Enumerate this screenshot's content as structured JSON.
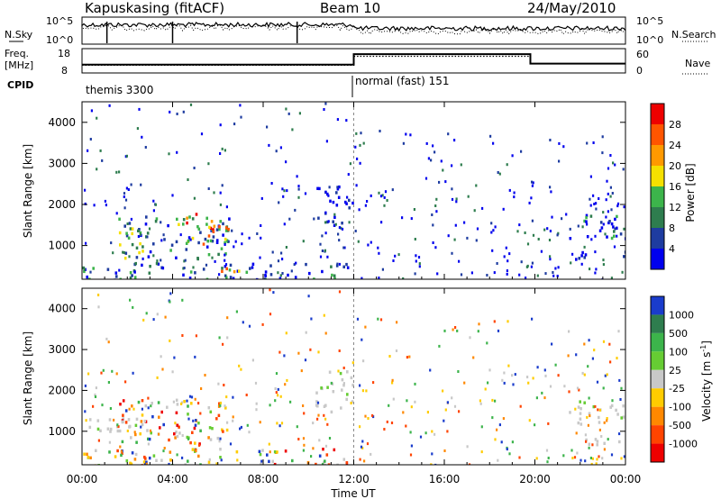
{
  "header": {
    "station": "Kapuskasing (fitACF)",
    "beam": "Beam 10",
    "date": "24/May/2010"
  },
  "status_panel": {
    "nsky_label": "N.Sky",
    "nsky_ticks": [
      "10^5",
      "10^0"
    ],
    "nsearch_label": "N.Search",
    "nsearch_ticks": [
      "10^5",
      "10^0"
    ],
    "freq_label_1": "Freq.",
    "freq_label_2": "[MHz]",
    "freq_ticks": [
      "18",
      "8"
    ],
    "nave_label": "Nave",
    "nave_ticks": [
      "60",
      "0"
    ],
    "cpid_label": "CPID",
    "cpid_segments": [
      {
        "label": "themis 3300",
        "start_h": 0,
        "end_h": 12
      },
      {
        "label": "normal (fast) 151",
        "start_h": 12,
        "end_h": 24
      }
    ],
    "freq_values": [
      {
        "start_h": 0,
        "end_h": 12,
        "mhz": 11.0
      },
      {
        "start_h": 12,
        "end_h": 19.8,
        "mhz": 16.5
      },
      {
        "start_h": 19.8,
        "end_h": 24,
        "mhz": 11.5
      }
    ],
    "nave_values": [
      {
        "start_h": 0,
        "end_h": 12,
        "nave": 18
      },
      {
        "start_h": 12,
        "end_h": 19.8,
        "nave": 45
      },
      {
        "start_h": 19.8,
        "end_h": 24,
        "nave": 22
      }
    ]
  },
  "chart_data": [
    {
      "type": "heatmap",
      "panel": "power",
      "xlabel": "",
      "ylabel": "Slant Range [km]",
      "xlim": [
        0,
        24
      ],
      "ylim": [
        180,
        4500
      ],
      "yticks": [
        "1000",
        "2000",
        "3000",
        "4000"
      ],
      "xticks": [
        "00:00",
        "04:00",
        "08:00",
        "12:00",
        "16:00",
        "20:00",
        "00:00"
      ],
      "colorbar": {
        "label": "Power [dB]",
        "ticks": [
          "4",
          "8",
          "12",
          "16",
          "20",
          "24",
          "28"
        ],
        "colors": [
          "#0000ee",
          "#1e3ca0",
          "#2e7d4e",
          "#3cb44b",
          "#f5e000",
          "#ff9900",
          "#ff5500",
          "#ee0000"
        ]
      },
      "regions": [
        {
          "x": [
            1.5,
            6.5
          ],
          "y": [
            700,
            1800
          ],
          "level": "medium-high"
        },
        {
          "x": [
            4.5,
            6.5
          ],
          "y": [
            900,
            1800
          ],
          "level": "high"
        },
        {
          "x": [
            10.3,
            12.0
          ],
          "y": [
            1500,
            2500
          ],
          "level": "low"
        },
        {
          "x": [
            0.0,
            12.0
          ],
          "y": [
            200,
            600
          ],
          "level": "low-medium"
        },
        {
          "x": [
            6.0,
            7.0
          ],
          "y": [
            200,
            500
          ],
          "level": "high"
        },
        {
          "x": [
            21.5,
            24.0
          ],
          "y": [
            1200,
            1800
          ],
          "level": "low-medium"
        },
        {
          "x": [
            21.5,
            24.0
          ],
          "y": [
            700,
            900
          ],
          "level": "low"
        }
      ]
    },
    {
      "type": "heatmap",
      "panel": "velocity",
      "xlabel": "Time UT",
      "ylabel": "Slant Range [km]",
      "xlim": [
        0,
        24
      ],
      "ylim": [
        180,
        4500
      ],
      "yticks": [
        "1000",
        "2000",
        "3000",
        "4000"
      ],
      "xticks": [
        "00:00",
        "04:00",
        "08:00",
        "12:00",
        "16:00",
        "20:00",
        "00:00"
      ],
      "colorbar": {
        "label": "Velocity [m s^-1]",
        "ticks": [
          "1000",
          "500",
          "100",
          "25",
          "-25",
          "-100",
          "-500",
          "-1000"
        ],
        "colors": [
          "#1a3ccc",
          "#2e7d4e",
          "#3cb44b",
          "#66cc33",
          "#c8c8c8",
          "#ffcc00",
          "#ff8800",
          "#ff4400",
          "#ee0000"
        ]
      },
      "regions": [
        {
          "x": [
            1.5,
            6.5
          ],
          "y": [
            700,
            1800
          ],
          "level": "mixed"
        },
        {
          "x": [
            0.0,
            3.0
          ],
          "y": [
            1000,
            1400
          ],
          "level": "ground"
        },
        {
          "x": [
            10.3,
            12.0
          ],
          "y": [
            1500,
            2500
          ],
          "level": "ground"
        },
        {
          "x": [
            0.0,
            12.0
          ],
          "y": [
            200,
            600
          ],
          "level": "mixed"
        },
        {
          "x": [
            21.5,
            24.0
          ],
          "y": [
            1200,
            1800
          ],
          "level": "ground"
        },
        {
          "x": [
            21.5,
            24.0
          ],
          "y": [
            700,
            900
          ],
          "level": "ground"
        }
      ]
    }
  ]
}
